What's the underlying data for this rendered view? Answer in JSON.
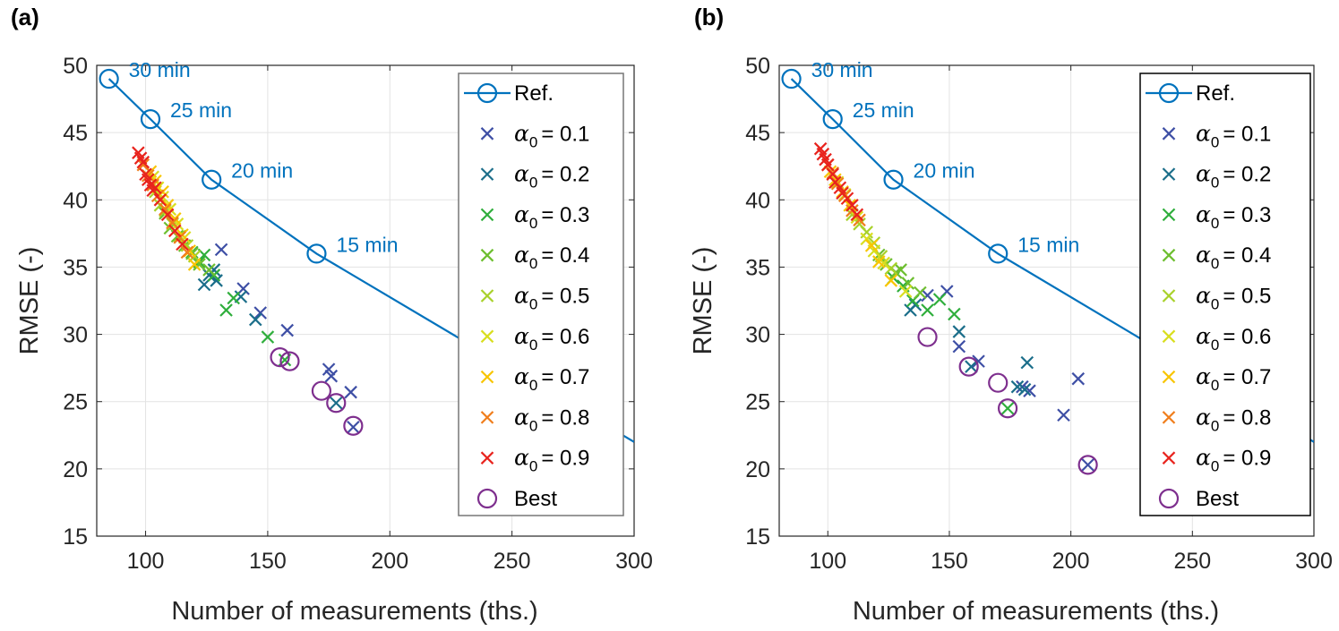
{
  "chart_data": [
    {
      "type": "scatter",
      "panel_label": "(a)",
      "xlabel": "Number of measurements (ths.)",
      "ylabel": "RMSE (-)",
      "xlim": [
        80,
        300
      ],
      "ylim": [
        15,
        50
      ],
      "xticks": [
        100,
        150,
        200,
        250,
        300
      ],
      "yticks": [
        15,
        20,
        25,
        30,
        35,
        40,
        45,
        50
      ],
      "grid": true,
      "legend_position": "top-right",
      "legend_box_color": "#777777",
      "ref": {
        "name": "Ref.",
        "color": "#0072BD",
        "x": [
          85,
          102,
          127,
          170,
          300
        ],
        "y": [
          49,
          46,
          41.5,
          36,
          22
        ],
        "annotations": [
          {
            "text": "30 min",
            "x": 85,
            "y": 49
          },
          {
            "text": "25 min",
            "x": 102,
            "y": 46
          },
          {
            "text": "20 min",
            "x": 127,
            "y": 41.5
          },
          {
            "text": "15 min",
            "x": 170,
            "y": 36
          }
        ]
      },
      "series": [
        {
          "name": "= 0.1",
          "alpha": "0.1",
          "color": "#3E4FA5",
          "x": [
            131,
            140,
            147,
            158,
            175,
            176,
            184,
            185
          ],
          "y": [
            36.3,
            33.4,
            31.6,
            30.3,
            27.4,
            26.9,
            25.7,
            23.1
          ]
        },
        {
          "name": "= 0.2",
          "alpha": "0.2",
          "color": "#1B6E8A",
          "x": [
            124,
            126,
            128,
            129,
            139,
            145,
            178
          ],
          "y": [
            33.7,
            34.4,
            34.8,
            34.0,
            32.8,
            31.1,
            24.9
          ]
        },
        {
          "name": "= 0.3",
          "alpha": "0.3",
          "color": "#2FAE3C",
          "x": [
            119,
            122,
            124,
            128,
            133,
            136,
            150,
            157
          ],
          "y": [
            36.1,
            35.4,
            35.9,
            34.4,
            31.8,
            32.7,
            29.8,
            28.1
          ]
        },
        {
          "name": "= 0.4",
          "alpha": "0.4",
          "color": "#6DBE2F",
          "x": [
            108,
            110,
            113,
            116,
            119,
            122,
            126
          ],
          "y": [
            39.0,
            37.9,
            37.3,
            36.6,
            36.0,
            35.2,
            34.8
          ]
        },
        {
          "name": "= 0.5",
          "alpha": "0.5",
          "color": "#A8D12A",
          "x": [
            104,
            106,
            108,
            111,
            114,
            117,
            120
          ],
          "y": [
            40.6,
            39.6,
            39.2,
            38.2,
            37.3,
            36.6,
            35.8
          ]
        },
        {
          "name": "= 0.6",
          "alpha": "0.6",
          "color": "#D9DE1F",
          "x": [
            103,
            105,
            107,
            110,
            113,
            116
          ],
          "y": [
            41.7,
            40.9,
            40.2,
            39.3,
            38.2,
            37.2
          ]
        },
        {
          "name": "= 0.7",
          "alpha": "0.7",
          "color": "#F8C500",
          "x": [
            102,
            104,
            107,
            109,
            112,
            115,
            118,
            120
          ],
          "y": [
            42.1,
            41.4,
            40.6,
            39.6,
            38.6,
            37.4,
            36.2,
            35.2
          ]
        },
        {
          "name": "=  0.8",
          "alpha": "0.8",
          "color": "#F07D1B",
          "x": [
            99,
            101,
            103,
            105,
            108,
            111,
            114,
            117
          ],
          "y": [
            42.6,
            41.8,
            41.1,
            40.3,
            39.3,
            38.3,
            37.2,
            36.1
          ]
        },
        {
          "name": "= 0.9",
          "alpha": "0.9",
          "color": "#E8231D",
          "x": [
            97,
            98,
            99,
            100,
            101,
            102,
            103,
            104,
            106,
            109,
            112,
            115
          ],
          "y": [
            43.5,
            43.1,
            42.8,
            41.9,
            41.5,
            41.1,
            40.7,
            40.9,
            40.0,
            38.9,
            37.7,
            36.7
          ]
        }
      ],
      "best": {
        "name": "Best",
        "color": "#7E2F8E",
        "x": [
          155,
          159,
          172,
          178,
          185
        ],
        "y": [
          28.3,
          28.0,
          25.8,
          24.9,
          23.2
        ]
      }
    },
    {
      "type": "scatter",
      "panel_label": "(b)",
      "xlabel": "Number of measurements (ths.)",
      "ylabel": "RMSE (-)",
      "xlim": [
        80,
        300
      ],
      "ylim": [
        15,
        50
      ],
      "xticks": [
        100,
        150,
        200,
        250,
        300
      ],
      "yticks": [
        15,
        20,
        25,
        30,
        35,
        40,
        45,
        50
      ],
      "grid": true,
      "legend_position": "top-right",
      "legend_box_color": "#000000",
      "ref": {
        "name": "Ref.",
        "color": "#0072BD",
        "x": [
          85,
          102,
          127,
          170,
          300
        ],
        "y": [
          49,
          46,
          41.5,
          36,
          22
        ],
        "annotations": [
          {
            "text": "30 min",
            "x": 85,
            "y": 49
          },
          {
            "text": "25 min",
            "x": 102,
            "y": 46
          },
          {
            "text": "20 min",
            "x": 127,
            "y": 41.5
          },
          {
            "text": "15 min",
            "x": 170,
            "y": 36
          }
        ]
      },
      "series": [
        {
          "name": "= 0.1",
          "alpha": "0.1",
          "color": "#3E4FA5",
          "x": [
            141,
            149,
            154,
            162,
            180,
            183,
            197,
            203,
            207
          ],
          "y": [
            32.9,
            33.2,
            29.1,
            28.0,
            26.1,
            25.8,
            24.0,
            26.7,
            20.3
          ]
        },
        {
          "name": "= 0.2",
          "alpha": "0.2",
          "color": "#1B6E8A",
          "x": [
            134,
            136,
            154,
            159,
            178,
            181,
            182
          ],
          "y": [
            31.8,
            32.2,
            30.2,
            27.6,
            26.1,
            25.9,
            27.9
          ]
        },
        {
          "name": "= 0.3",
          "alpha": "0.3",
          "color": "#2FAE3C",
          "x": [
            127,
            131,
            135,
            141,
            146,
            152,
            174
          ],
          "y": [
            34.2,
            33.6,
            32.5,
            31.8,
            32.6,
            31.5,
            24.5
          ]
        },
        {
          "name": "= 0.4",
          "alpha": "0.4",
          "color": "#6DBE2F",
          "x": [
            121,
            124,
            128,
            130,
            133,
            138
          ],
          "y": [
            35.9,
            35.2,
            34.6,
            34.8,
            33.8,
            33.1
          ]
        },
        {
          "name": "= 0.5",
          "alpha": "0.5",
          "color": "#A8D12A",
          "x": [
            110,
            113,
            116,
            119,
            122,
            126
          ],
          "y": [
            38.9,
            38.2,
            37.6,
            36.8,
            35.8,
            34.9
          ]
        },
        {
          "name": "= 0.6",
          "alpha": "0.6",
          "color": "#D9DE1F",
          "x": [
            104,
            107,
            112,
            116,
            119,
            123,
            132
          ],
          "y": [
            41.3,
            40.4,
            38.7,
            37.1,
            36.2,
            35.3,
            33.2
          ]
        },
        {
          "name": "= 0.7",
          "alpha": "0.7",
          "color": "#F8C500",
          "x": [
            101,
            103,
            106,
            109,
            118,
            121,
            126
          ],
          "y": [
            42.1,
            41.5,
            40.6,
            39.6,
            36.6,
            35.4,
            34.0
          ]
        },
        {
          "name": "=  0.8",
          "alpha": "0.8",
          "color": "#F07D1B",
          "x": [
            100,
            102,
            104,
            107,
            110,
            113
          ],
          "y": [
            42.6,
            42.0,
            41.2,
            40.3,
            39.2,
            38.5
          ]
        },
        {
          "name": "= 0.9",
          "alpha": "0.9",
          "color": "#E8231D",
          "x": [
            97,
            98,
            99,
            100,
            102,
            103,
            105,
            106,
            108,
            110,
            112
          ],
          "y": [
            43.8,
            43.4,
            43.0,
            42.6,
            41.9,
            41.3,
            40.9,
            40.5,
            40.1,
            39.6,
            38.9
          ]
        }
      ],
      "best": {
        "name": "Best",
        "color": "#7E2F8E",
        "x": [
          141,
          158,
          170,
          174,
          207
        ],
        "y": [
          29.8,
          27.6,
          26.4,
          24.5,
          20.3
        ]
      }
    }
  ]
}
